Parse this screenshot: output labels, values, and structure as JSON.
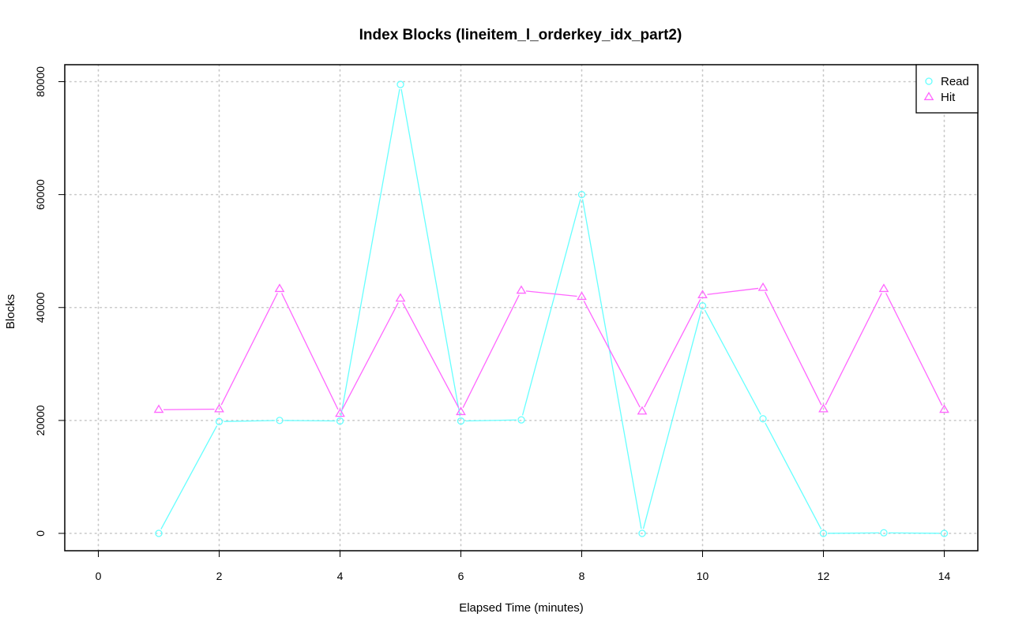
{
  "chart_data": {
    "type": "line",
    "title": "Index Blocks (lineitem_l_orderkey_idx_part2)",
    "xlabel": "Elapsed Time (minutes)",
    "ylabel": "Blocks",
    "xlim": [
      0,
      14
    ],
    "ylim": [
      0,
      80000
    ],
    "x_ticks": [
      0,
      2,
      4,
      6,
      8,
      10,
      12,
      14
    ],
    "y_ticks": [
      0,
      20000,
      40000,
      60000,
      80000
    ],
    "grid": true,
    "legend_position": "top-right",
    "x": [
      1,
      2,
      3,
      4,
      5,
      6,
      7,
      8,
      9,
      10,
      11,
      12,
      13,
      14
    ],
    "series": [
      {
        "name": "Read",
        "color": "#66ffff",
        "marker": "circle",
        "values": [
          0,
          19800,
          20000,
          19900,
          79500,
          19900,
          20100,
          60000,
          0,
          40300,
          20300,
          0,
          100,
          0
        ]
      },
      {
        "name": "Hit",
        "color": "#ff66ff",
        "marker": "triangle",
        "values": [
          21900,
          22000,
          43300,
          21200,
          41600,
          21500,
          43000,
          41900,
          21600,
          42200,
          43500,
          22000,
          43300,
          21900
        ]
      }
    ]
  }
}
